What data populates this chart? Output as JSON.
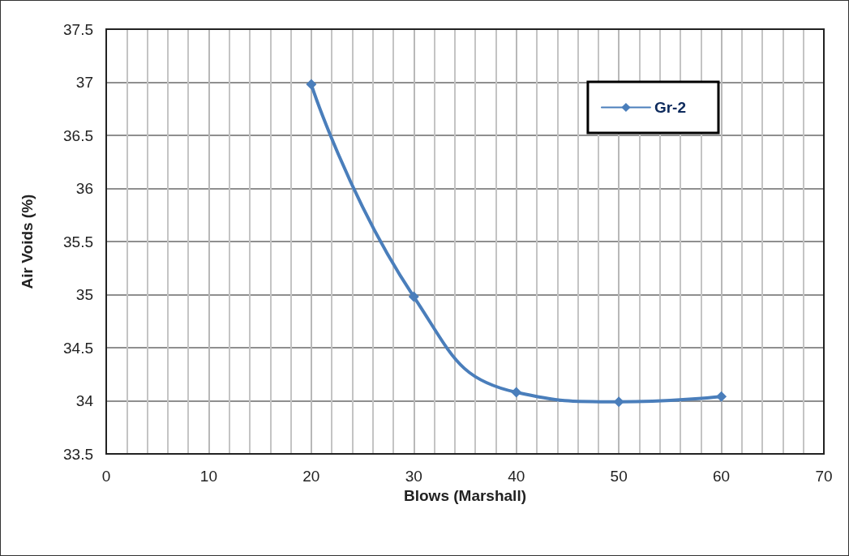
{
  "chart_data": {
    "type": "line",
    "xlabel": "Blows (Marshall)",
    "ylabel": "Air Voids (%)",
    "x": [
      20,
      30,
      40,
      50,
      60
    ],
    "series": [
      {
        "name": "Gr-2",
        "color": "#4a7ebb",
        "values": [
          36.98,
          34.98,
          34.08,
          33.99,
          34.04
        ]
      }
    ],
    "xlim": [
      0,
      70
    ],
    "xticks": [
      0,
      10,
      20,
      30,
      40,
      50,
      60,
      70
    ],
    "ylim": [
      33.5,
      37.5
    ],
    "yticks": [
      33.5,
      34,
      34.5,
      35,
      35.5,
      36,
      36.5,
      37,
      37.5
    ],
    "grid": true,
    "legend": "top right",
    "marker": "diamond",
    "line_style": "solid"
  }
}
